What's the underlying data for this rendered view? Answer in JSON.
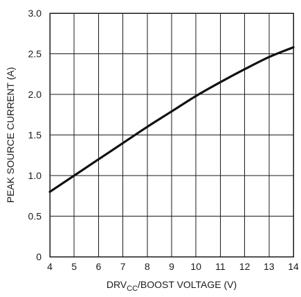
{
  "chart_data": {
    "type": "line",
    "title": "",
    "xlabel": {
      "prefix": "DRV",
      "subscript": "CC",
      "suffix": "/BOOST VOLTAGE (V)"
    },
    "ylabel": "PEAK SOURCE CURRENT (A)",
    "xlim": [
      4,
      14
    ],
    "ylim": [
      0,
      3.0
    ],
    "x_ticks": [
      4,
      5,
      6,
      7,
      8,
      9,
      10,
      11,
      12,
      13,
      14
    ],
    "x_tick_labels": [
      "4",
      "5",
      "6",
      "7",
      "8",
      "9",
      "10",
      "11",
      "12",
      "13",
      "14"
    ],
    "y_ticks": [
      0,
      0.5,
      1.0,
      1.5,
      2.0,
      2.5,
      3.0
    ],
    "y_tick_labels": [
      "0",
      "0.5",
      "1.0",
      "1.5",
      "2.0",
      "2.5",
      "3.0"
    ],
    "grid": true,
    "series": [
      {
        "color": "#111111",
        "x": [
          4,
          5,
          6,
          7,
          8,
          9,
          10,
          11,
          12,
          13,
          14
        ],
        "y": [
          0.8,
          1.0,
          1.2,
          1.4,
          1.6,
          1.79,
          1.98,
          2.15,
          2.31,
          2.46,
          2.58
        ]
      }
    ]
  }
}
